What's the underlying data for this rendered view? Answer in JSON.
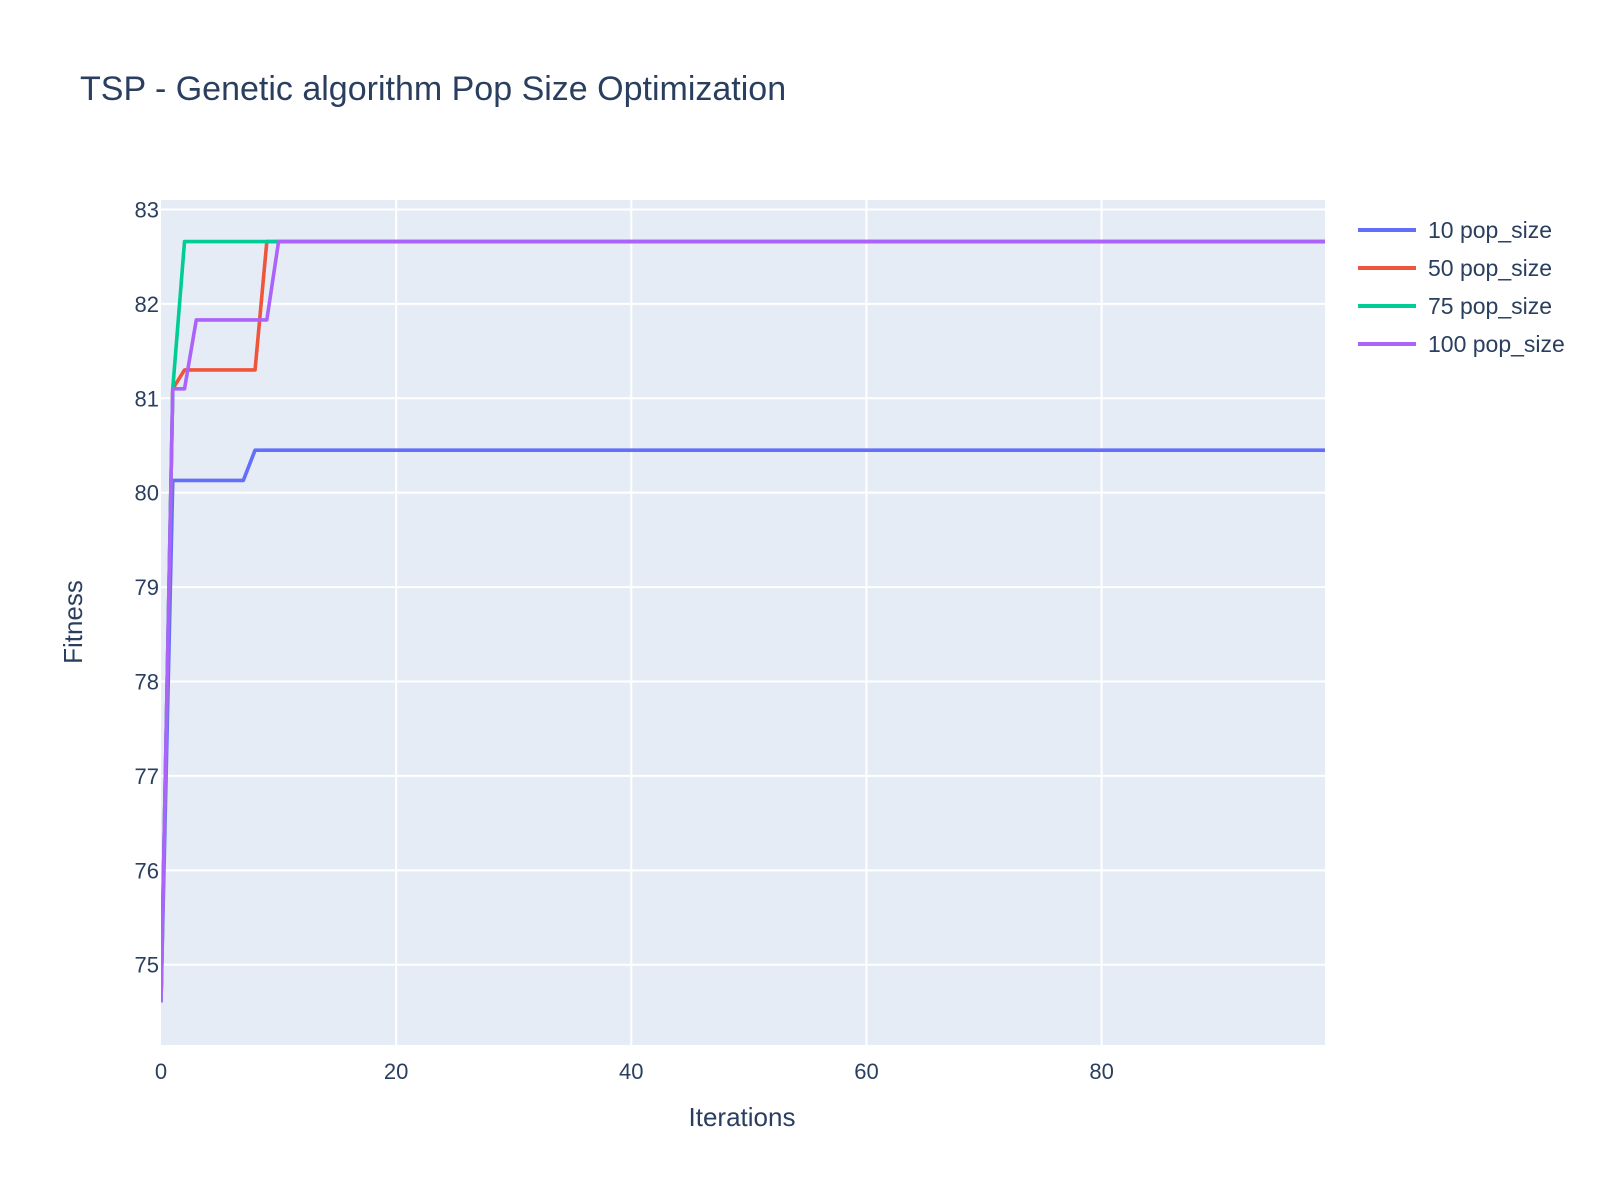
{
  "chart_data": {
    "type": "line",
    "title": "TSP - Genetic algorithm Pop Size Optimization",
    "xlabel": "Iterations",
    "ylabel": "Fitness",
    "xlim": [
      0,
      99
    ],
    "ylim": [
      74.15,
      83.1
    ],
    "xticks": [
      0,
      20,
      40,
      60,
      80
    ],
    "yticks": [
      75,
      76,
      77,
      78,
      79,
      80,
      81,
      82,
      83
    ],
    "grid": true,
    "plot_background": "#e5ecf6",
    "legend_position": "top-right",
    "series": [
      {
        "name": "10 pop_size",
        "color": "#636efa",
        "points": [
          [
            0,
            74.6
          ],
          [
            1,
            80.13
          ],
          [
            7,
            80.13
          ],
          [
            8,
            80.45
          ],
          [
            99,
            80.45
          ]
        ]
      },
      {
        "name": "50 pop_size",
        "color": "#ef553b",
        "points": [
          [
            0,
            74.6
          ],
          [
            1,
            81.1
          ],
          [
            2,
            81.3
          ],
          [
            8,
            81.3
          ],
          [
            9,
            82.66
          ],
          [
            99,
            82.66
          ]
        ]
      },
      {
        "name": "75 pop_size",
        "color": "#00cc96",
        "points": [
          [
            0,
            74.6
          ],
          [
            1,
            81.1
          ],
          [
            2,
            82.66
          ],
          [
            99,
            82.66
          ]
        ]
      },
      {
        "name": "100 pop_size",
        "color": "#ab63fa",
        "points": [
          [
            0,
            74.6
          ],
          [
            1,
            81.1
          ],
          [
            2,
            81.1
          ],
          [
            3,
            81.83
          ],
          [
            9,
            81.83
          ],
          [
            10,
            82.66
          ],
          [
            99,
            82.66
          ]
        ]
      }
    ]
  }
}
